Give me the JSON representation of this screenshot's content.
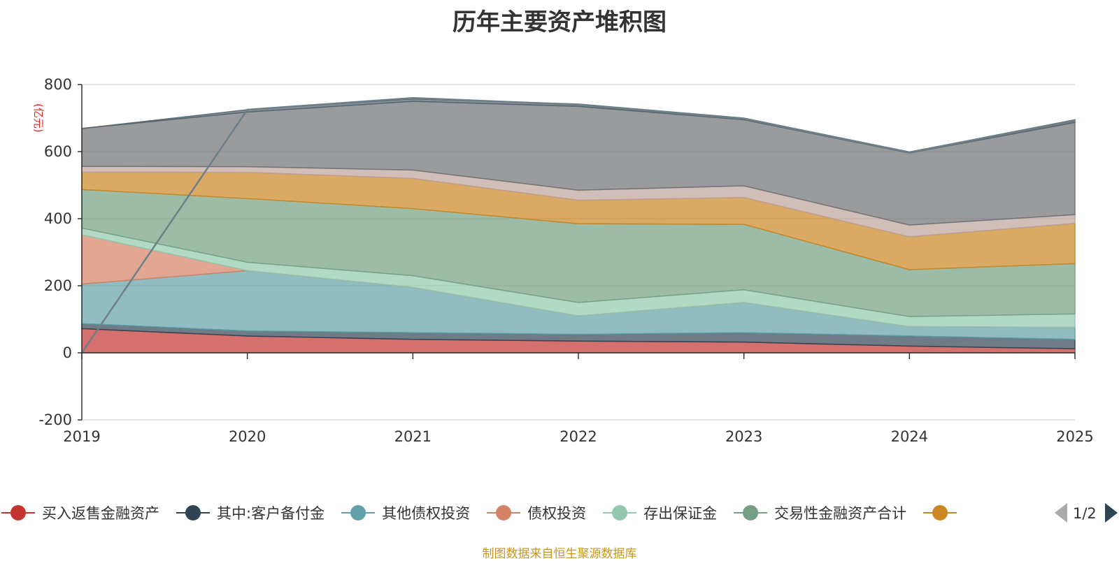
{
  "chart_data": {
    "type": "area",
    "stacked": true,
    "title": "历年主要资产堆积图",
    "unit_label": "(亿元)",
    "categories": [
      "2019",
      "2020",
      "2021",
      "2022",
      "2023",
      "2024",
      "2025"
    ],
    "ylim": [
      -200,
      800
    ],
    "yticks": [
      800,
      600,
      400,
      200,
      0,
      -200
    ],
    "grid": true,
    "series": [
      {
        "name": "买入返售金融资产",
        "color": "#c23531",
        "values": [
          72,
          50,
          40,
          35,
          32,
          20,
          12
        ]
      },
      {
        "name": "其中:客户备付金",
        "color": "#2f4554",
        "values": [
          15,
          15,
          20,
          20,
          28,
          30,
          28
        ]
      },
      {
        "name": "其他债权投资",
        "color": "#61a0a8",
        "values": [
          118,
          180,
          135,
          55,
          90,
          28,
          36
        ]
      },
      {
        "name": "债权投资",
        "color": "#d48265",
        "values": [
          147,
          0,
          0,
          0,
          0,
          0,
          0
        ]
      },
      {
        "name": "存出保证金",
        "color": "#91c7ae",
        "values": [
          20,
          25,
          35,
          40,
          38,
          30,
          40
        ]
      },
      {
        "name": "交易性金融资产合计",
        "color": "#749f83",
        "values": [
          115,
          190,
          200,
          235,
          195,
          140,
          150
        ]
      },
      {
        "name": "",
        "color": "#ca8622",
        "values": [
          52,
          78,
          90,
          70,
          80,
          98,
          120
        ]
      },
      {
        "name": "",
        "color": "#bda29a",
        "values": [
          17,
          17,
          25,
          30,
          35,
          35,
          26
        ]
      },
      {
        "name": "",
        "color": "#6e7074",
        "values": [
          113,
          163,
          205,
          250,
          197,
          215,
          275
        ]
      },
      {
        "name": "",
        "color": "#546570",
        "values": [
          0,
          7,
          7,
          7,
          5,
          3,
          8
        ]
      }
    ],
    "overlay_line": {
      "color": "#6e7f86",
      "values": [
        0,
        725,
        760,
        740,
        698,
        598,
        692
      ]
    }
  },
  "legend": {
    "visible_items": [
      {
        "label": "买入返售金融资产",
        "color": "#c23531"
      },
      {
        "label": "其中:客户备付金",
        "color": "#2f4554"
      },
      {
        "label": "其他债权投资",
        "color": "#61a0a8"
      },
      {
        "label": "债权投资",
        "color": "#d48265"
      },
      {
        "label": "存出保证金",
        "color": "#91c7ae"
      },
      {
        "label": "交易性金融资产合计",
        "color": "#749f83"
      },
      {
        "label": "",
        "color": "#ca8622"
      }
    ],
    "page_indicator": "1/2"
  },
  "footer": {
    "source": "制图数据来自恒生聚源数据库"
  }
}
